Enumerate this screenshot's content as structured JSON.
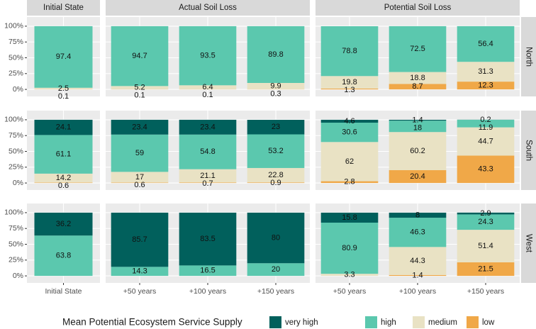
{
  "chart_data": {
    "type": "bar",
    "stacked": true,
    "legend_title": "Mean Potential Ecosystem Service Supply",
    "legend_position": "bottom",
    "rows": [
      "North",
      "South",
      "West"
    ],
    "columns": [
      "Initial State",
      "Actual Soil Loss",
      "Potential Soil Loss"
    ],
    "categories": [
      [
        "Initial State"
      ],
      [
        "+50 years",
        "+100 years",
        "+150 years"
      ],
      [
        "+50 years",
        "+100 years",
        "+150 years"
      ]
    ],
    "ylim": [
      -10,
      110
    ],
    "yticks": [
      {
        "value": 0,
        "label": "0%"
      },
      {
        "value": 25,
        "label": "25%"
      },
      {
        "value": 50,
        "label": "50%"
      },
      {
        "value": 75,
        "label": "75%"
      },
      {
        "value": 100,
        "label": "100%"
      }
    ],
    "grid": true,
    "series": [
      {
        "name": "low",
        "color": "#f0a848",
        "values": [
          [
            [
              0.1
            ],
            [
              0.1,
              0.1,
              0.3
            ],
            [
              1.3,
              8.7,
              12.3
            ]
          ],
          [
            [
              0.6
            ],
            [
              0.6,
              0.7,
              0.9
            ],
            [
              2.8,
              20.4,
              43.3
            ]
          ],
          [
            [
              null
            ],
            [
              null,
              null,
              null
            ],
            [
              null,
              1.4,
              21.5
            ]
          ]
        ]
      },
      {
        "name": "medium",
        "color": "#e9e2c4",
        "values": [
          [
            [
              2.5
            ],
            [
              5.2,
              6.4,
              9.9
            ],
            [
              19.8,
              18.8,
              31.3
            ]
          ],
          [
            [
              14.2
            ],
            [
              17,
              21.1,
              22.8
            ],
            [
              62,
              60.2,
              44.7
            ]
          ],
          [
            [
              null
            ],
            [
              null,
              null,
              null
            ],
            [
              3.3,
              44.3,
              51.4
            ]
          ]
        ]
      },
      {
        "name": "high",
        "color": "#5bc8ae",
        "values": [
          [
            [
              97.4
            ],
            [
              94.7,
              93.5,
              89.8
            ],
            [
              78.8,
              72.5,
              56.4
            ]
          ],
          [
            [
              61.1
            ],
            [
              59,
              54.8,
              53.2
            ],
            [
              30.6,
              18,
              11.9
            ]
          ],
          [
            [
              63.8
            ],
            [
              14.3,
              16.5,
              20
            ],
            [
              80.9,
              46.3,
              24.3
            ]
          ]
        ]
      },
      {
        "name": "very high",
        "color": "#01605c",
        "values": [
          [
            [
              null
            ],
            [
              null,
              null,
              null
            ],
            [
              null,
              null,
              null
            ]
          ],
          [
            [
              24.1
            ],
            [
              23.4,
              23.4,
              23
            ],
            [
              4.6,
              1.4,
              0.2
            ]
          ],
          [
            [
              36.2
            ],
            [
              85.7,
              83.5,
              80
            ],
            [
              15.8,
              8,
              2.9
            ]
          ]
        ]
      }
    ]
  }
}
